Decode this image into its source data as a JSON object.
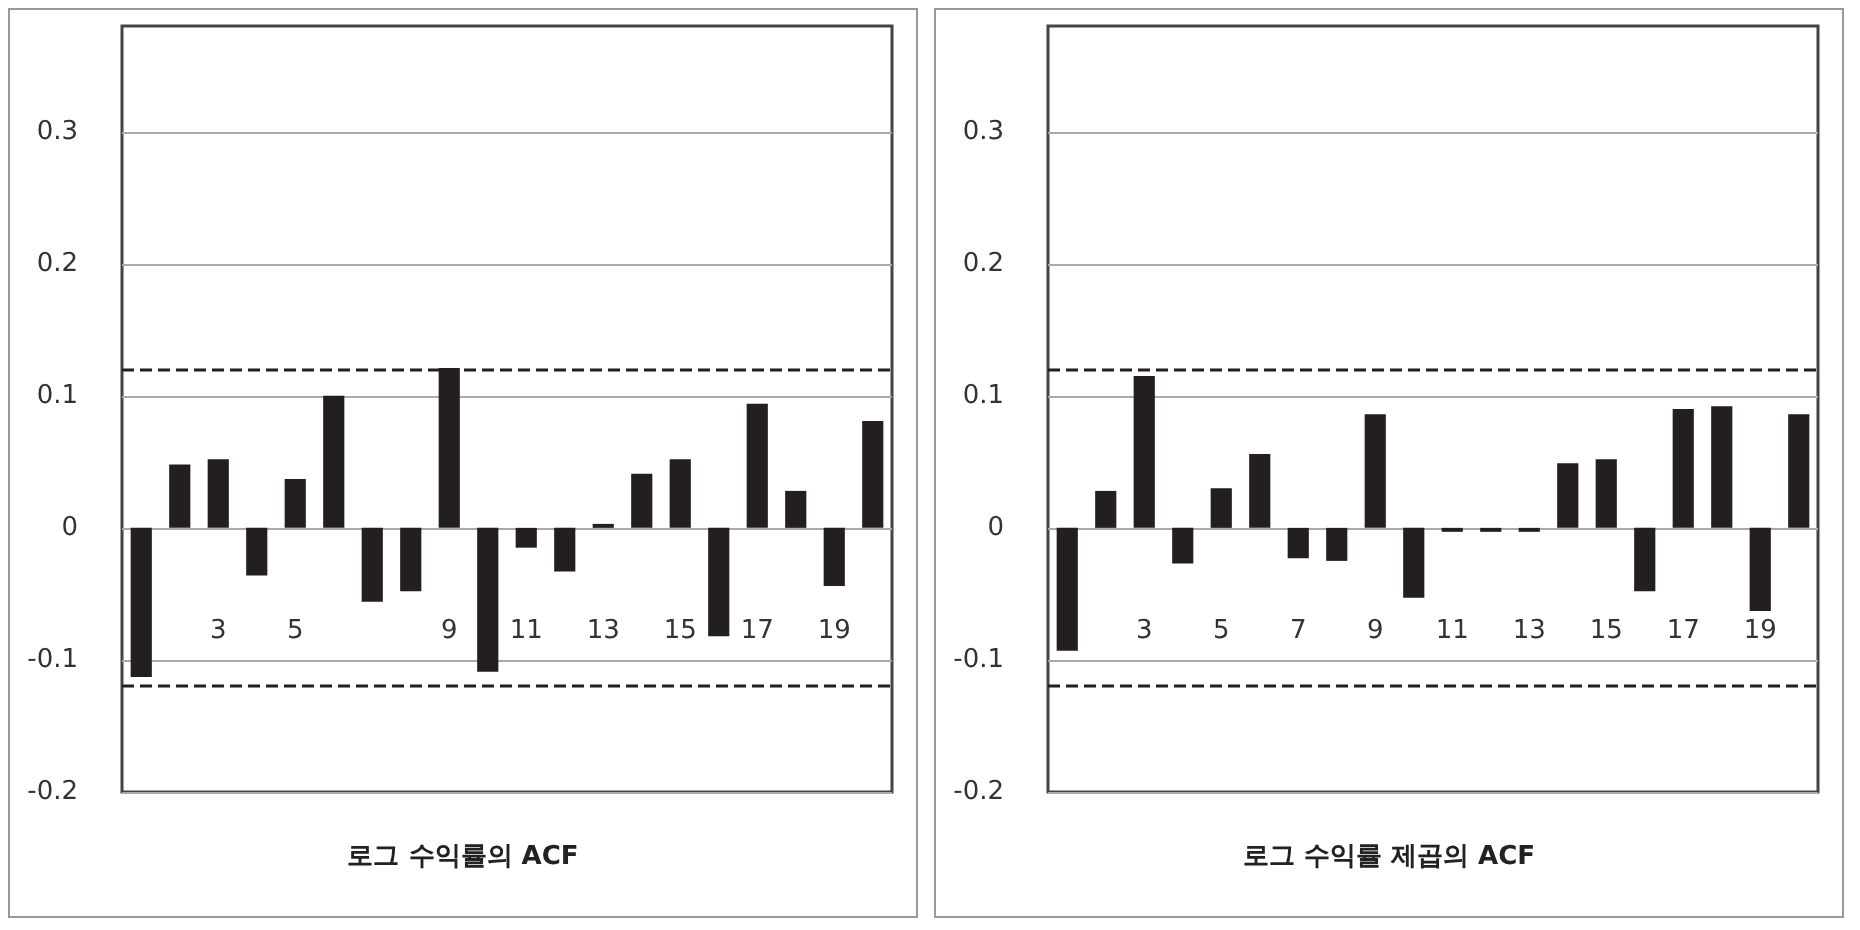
{
  "chart_data": [
    {
      "type": "bar",
      "title": "로그 수익률의 ACF",
      "categories": [
        null,
        null,
        "3",
        null,
        "5",
        null,
        null,
        null,
        "9",
        null,
        "11",
        null,
        "13",
        null,
        "15",
        null,
        "17",
        null,
        "19",
        null
      ],
      "series": [
        {
          "color": "#231f20",
          "values": [
            -0.113,
            0.048,
            0.052,
            -0.036,
            0.037,
            0.1,
            -0.056,
            -0.048,
            0.121,
            -0.109,
            -0.015,
            -0.033,
            0.003,
            0.041,
            0.052,
            -0.082,
            0.094,
            0.028,
            -0.044,
            0.081
          ]
        }
      ],
      "ylim": [
        -0.2,
        0.38
      ],
      "yticks": [
        -0.2,
        -0.1,
        0,
        0.1,
        0.2,
        0.3
      ],
      "grid": "y",
      "ref_lines": [
        {
          "axis": "y",
          "value": 0.12,
          "color": "#231f20",
          "line_style": "dashed"
        },
        {
          "axis": "y",
          "value": -0.12,
          "color": "#231f20",
          "line_style": "dashed"
        }
      ]
    },
    {
      "type": "bar",
      "title": "로그 수익률 제곱의 ACF",
      "categories": [
        null,
        null,
        "3",
        null,
        "5",
        null,
        "7",
        null,
        "9",
        null,
        "11",
        null,
        "13",
        null,
        "15",
        null,
        "17",
        null,
        "19",
        null
      ],
      "series": [
        {
          "color": "#231f20",
          "values": [
            -0.093,
            0.028,
            0.115,
            -0.027,
            0.03,
            0.056,
            -0.023,
            -0.025,
            0.086,
            -0.053,
            -0.003,
            -0.003,
            -0.003,
            0.049,
            0.052,
            -0.048,
            0.09,
            0.092,
            -0.063,
            0.086
          ]
        }
      ],
      "ylim": [
        -0.2,
        0.38
      ],
      "yticks": [
        -0.2,
        -0.1,
        0,
        0.1,
        0.2,
        0.3
      ],
      "grid": "y",
      "ref_lines": [
        {
          "axis": "y",
          "value": 0.12,
          "color": "#231f20",
          "line_style": "dashed"
        },
        {
          "axis": "y",
          "value": -0.12,
          "color": "#231f20",
          "line_style": "dashed"
        }
      ]
    }
  ]
}
